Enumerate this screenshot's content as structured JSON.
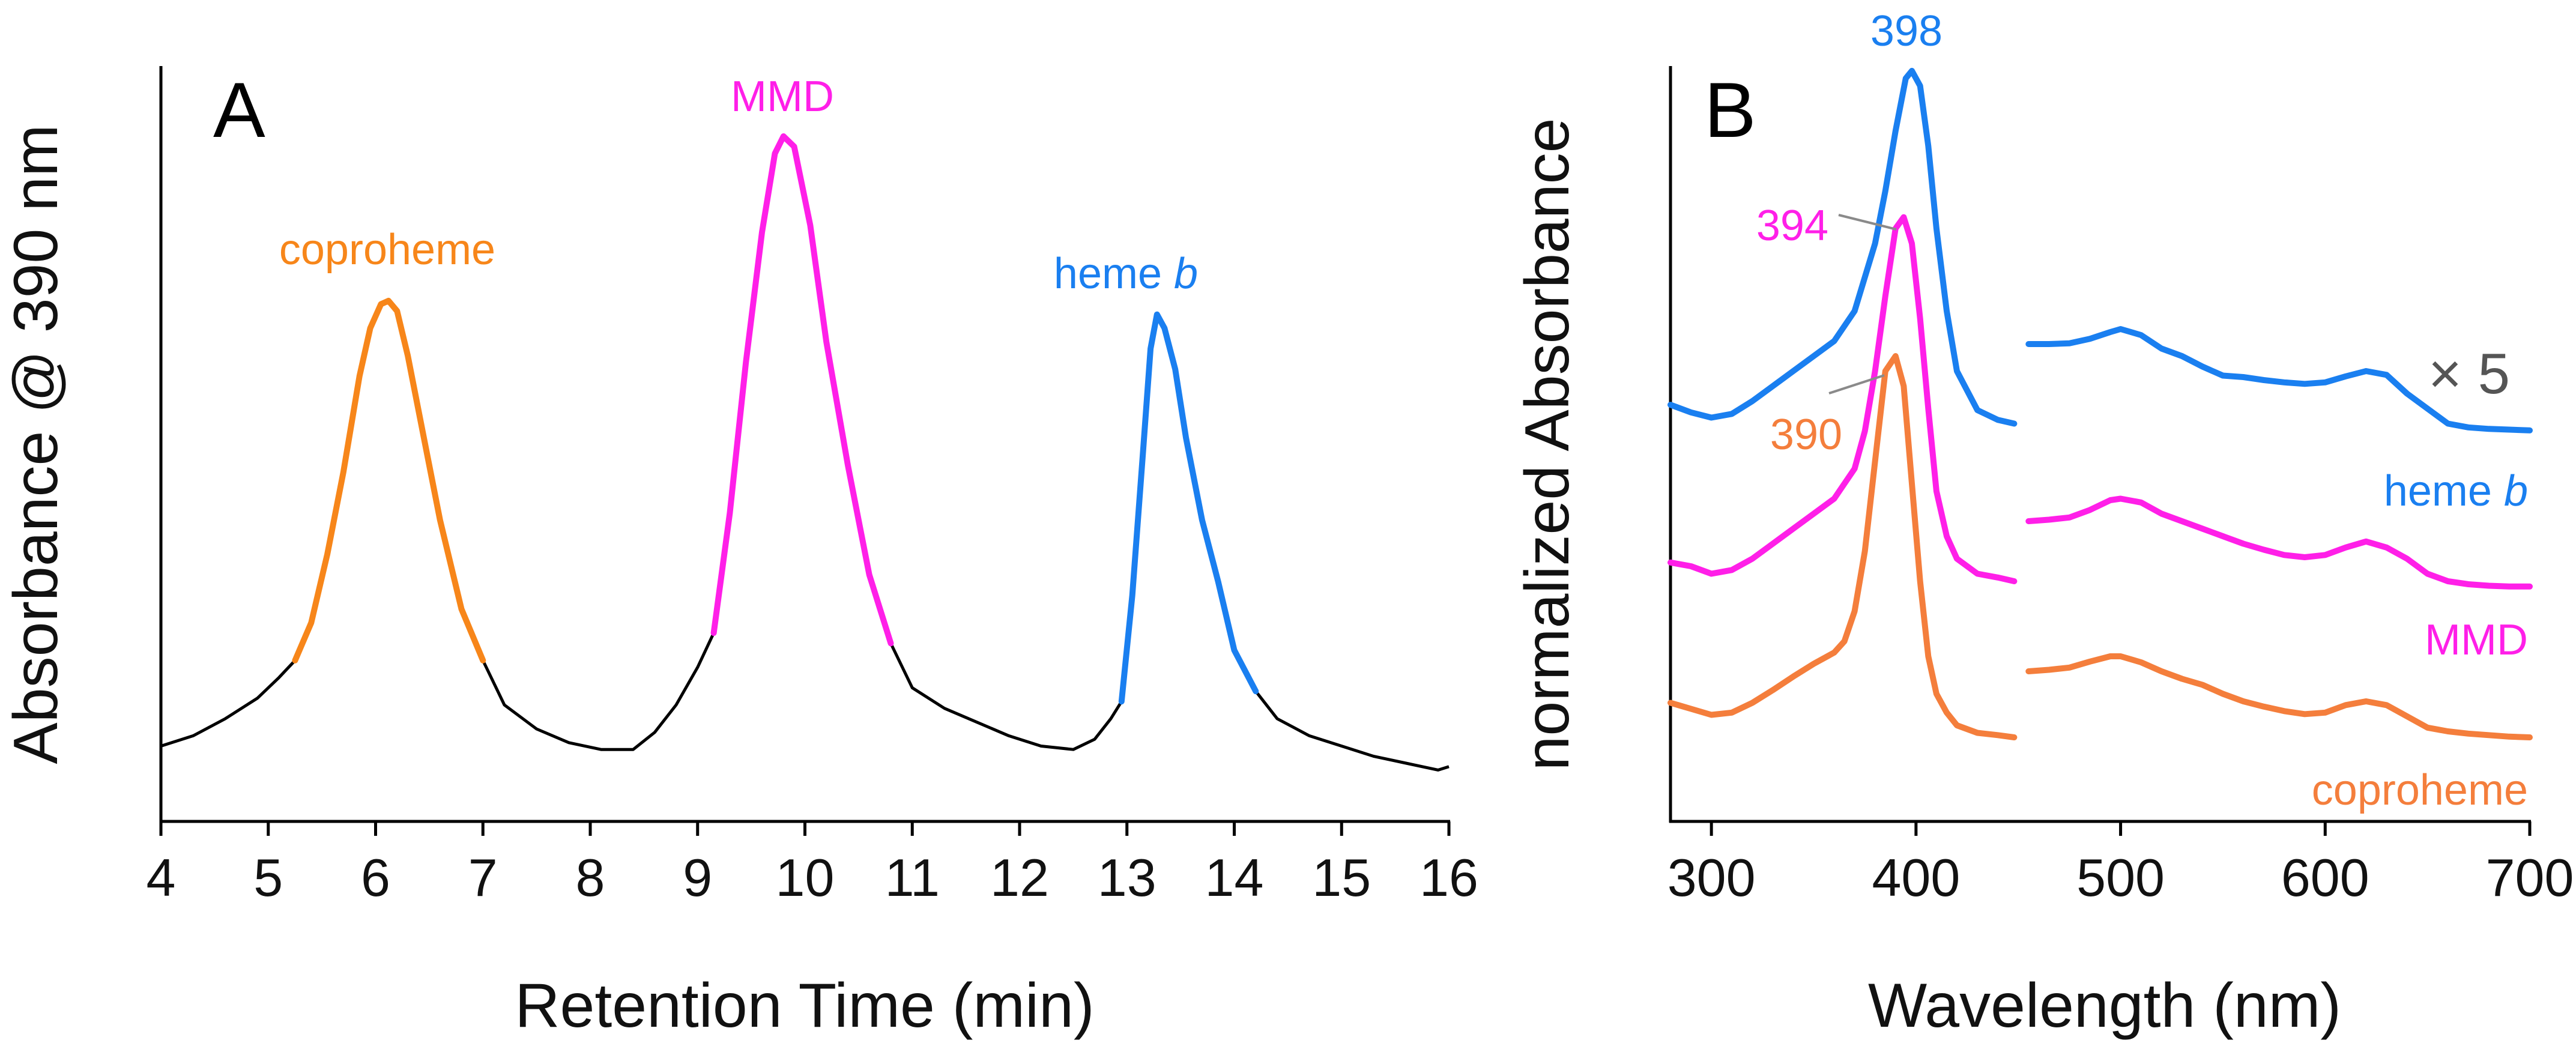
{
  "colors": {
    "coproheme": "#f7861a",
    "mmd": "#ff1fe8",
    "heme_b": "#1a7ff0",
    "coproheme_spectrum": "#f47e3c",
    "baseline": "#000000",
    "leader": "#8a8a8a",
    "scale_note": "#555555"
  },
  "chart_data": [
    {
      "panel": "A",
      "type": "line",
      "title": "",
      "xlabel": "Retention Time (min)",
      "ylabel": "Absorbance @ 390 nm",
      "xlim": [
        4,
        16
      ],
      "ylim": [
        0,
        1.05
      ],
      "x_ticks": [
        "4",
        "5",
        "6",
        "7",
        "8",
        "9",
        "10",
        "11",
        "12",
        "13",
        "14",
        "15",
        "16"
      ],
      "grid": false,
      "trace": {
        "x": [
          4.0,
          4.3,
          4.6,
          4.9,
          5.1,
          5.25,
          5.4,
          5.55,
          5.7,
          5.85,
          5.95,
          6.05,
          6.12,
          6.2,
          6.3,
          6.45,
          6.6,
          6.8,
          7.0,
          7.2,
          7.5,
          7.8,
          8.1,
          8.4,
          8.6,
          8.8,
          9.0,
          9.15,
          9.3,
          9.45,
          9.6,
          9.72,
          9.8,
          9.9,
          10.05,
          10.2,
          10.4,
          10.6,
          10.8,
          11.0,
          11.3,
          11.6,
          11.9,
          12.2,
          12.5,
          12.7,
          12.85,
          12.95,
          13.05,
          13.15,
          13.22,
          13.28,
          13.35,
          13.45,
          13.55,
          13.7,
          13.85,
          14.0,
          14.2,
          14.4,
          14.7,
          15.0,
          15.3,
          15.6,
          15.9,
          16.0
        ],
        "y": [
          0.11,
          0.125,
          0.15,
          0.18,
          0.21,
          0.235,
          0.29,
          0.39,
          0.51,
          0.65,
          0.72,
          0.755,
          0.76,
          0.745,
          0.68,
          0.56,
          0.44,
          0.31,
          0.235,
          0.17,
          0.135,
          0.115,
          0.105,
          0.105,
          0.13,
          0.17,
          0.225,
          0.275,
          0.45,
          0.67,
          0.86,
          0.975,
          1.0,
          0.985,
          0.87,
          0.7,
          0.52,
          0.36,
          0.26,
          0.195,
          0.165,
          0.145,
          0.125,
          0.11,
          0.105,
          0.12,
          0.15,
          0.175,
          0.33,
          0.54,
          0.69,
          0.74,
          0.72,
          0.66,
          0.56,
          0.44,
          0.35,
          0.25,
          0.19,
          0.15,
          0.125,
          0.11,
          0.095,
          0.085,
          0.075,
          0.08
        ]
      },
      "segments": [
        {
          "name": "coproheme",
          "label": "coproheme",
          "from": 5.25,
          "to": 7.0
        },
        {
          "name": "MMD",
          "label": "MMD",
          "from": 9.15,
          "to": 10.8
        },
        {
          "name": "heme b",
          "label": "heme",
          "label_italic": "b",
          "from": 12.95,
          "to": 14.2
        }
      ]
    },
    {
      "panel": "B",
      "type": "line",
      "title": "",
      "xlabel": "Wavelength (nm)",
      "ylabel": "normalized Absorbance",
      "xlim": [
        280,
        700
      ],
      "ylim": [
        0,
        1
      ],
      "x_ticks": [
        "300",
        "400",
        "500",
        "600",
        "700"
      ],
      "grid": false,
      "scale_note": "× 5",
      "visible_range_scale": 5,
      "series": [
        {
          "name": "heme b",
          "label": "heme",
          "label_italic": "b",
          "peak_label": "398",
          "soret": {
            "x": [
              280,
              290,
              300,
              310,
              320,
              330,
              340,
              350,
              360,
              370,
              380,
              385,
              390,
              395,
              398,
              402,
              406,
              410,
              415,
              420,
              430,
              440,
              448
            ],
            "y": [
              0.555,
              0.545,
              0.538,
              0.543,
              0.56,
              0.58,
              0.6,
              0.62,
              0.64,
              0.68,
              0.77,
              0.84,
              0.92,
              0.99,
              1.0,
              0.98,
              0.9,
              0.79,
              0.68,
              0.6,
              0.548,
              0.535,
              0.53
            ]
          },
          "visible": {
            "x": [
              455,
              465,
              475,
              485,
              495,
              500,
              510,
              520,
              530,
              540,
              550,
              560,
              570,
              580,
              590,
              600,
              610,
              620,
              630,
              640,
              650,
              660,
              670,
              680,
              690,
              700
            ],
            "y": [
              0.636,
              0.636,
              0.637,
              0.643,
              0.652,
              0.656,
              0.648,
              0.63,
              0.62,
              0.606,
              0.594,
              0.592,
              0.588,
              0.585,
              0.583,
              0.585,
              0.593,
              0.6,
              0.595,
              0.57,
              0.55,
              0.53,
              0.525,
              0.523,
              0.522,
              0.521
            ]
          }
        },
        {
          "name": "MMD",
          "label": "MMD",
          "peak_label": "394",
          "soret": {
            "x": [
              280,
              290,
              300,
              310,
              320,
              330,
              340,
              350,
              360,
              370,
              375,
              380,
              385,
              390,
              394,
              398,
              402,
              406,
              410,
              415,
              420,
              430,
              440,
              448
            ],
            "y": [
              0.345,
              0.34,
              0.33,
              0.335,
              0.35,
              0.37,
              0.39,
              0.41,
              0.43,
              0.47,
              0.52,
              0.6,
              0.7,
              0.79,
              0.805,
              0.77,
              0.67,
              0.55,
              0.44,
              0.38,
              0.35,
              0.33,
              0.325,
              0.32
            ]
          },
          "visible": {
            "x": [
              455,
              465,
              475,
              485,
              495,
              500,
              510,
              520,
              530,
              540,
              550,
              560,
              570,
              580,
              590,
              600,
              610,
              620,
              630,
              640,
              650,
              660,
              670,
              680,
              690,
              700
            ],
            "y": [
              0.4,
              0.402,
              0.405,
              0.415,
              0.428,
              0.43,
              0.425,
              0.41,
              0.4,
              0.39,
              0.38,
              0.37,
              0.362,
              0.355,
              0.352,
              0.355,
              0.365,
              0.373,
              0.365,
              0.35,
              0.33,
              0.32,
              0.316,
              0.314,
              0.313,
              0.313
            ]
          }
        },
        {
          "name": "coproheme",
          "label": "coproheme",
          "peak_label": "390",
          "soret": {
            "x": [
              280,
              290,
              300,
              310,
              320,
              330,
              340,
              350,
              360,
              365,
              370,
              375,
              380,
              385,
              390,
              394,
              398,
              402,
              406,
              410,
              415,
              420,
              430,
              440,
              448
            ],
            "y": [
              0.158,
              0.15,
              0.142,
              0.145,
              0.158,
              0.175,
              0.193,
              0.21,
              0.225,
              0.24,
              0.28,
              0.36,
              0.48,
              0.6,
              0.62,
              0.58,
              0.45,
              0.32,
              0.22,
              0.17,
              0.145,
              0.128,
              0.118,
              0.115,
              0.112
            ]
          },
          "visible": {
            "x": [
              455,
              465,
              475,
              485,
              495,
              500,
              510,
              520,
              530,
              540,
              550,
              560,
              570,
              580,
              590,
              600,
              610,
              620,
              630,
              640,
              650,
              660,
              670,
              680,
              690,
              700
            ],
            "y": [
              0.2,
              0.202,
              0.205,
              0.213,
              0.22,
              0.22,
              0.212,
              0.2,
              0.19,
              0.182,
              0.17,
              0.16,
              0.153,
              0.147,
              0.143,
              0.145,
              0.155,
              0.16,
              0.155,
              0.14,
              0.125,
              0.12,
              0.117,
              0.115,
              0.113,
              0.112
            ]
          }
        }
      ]
    }
  ]
}
